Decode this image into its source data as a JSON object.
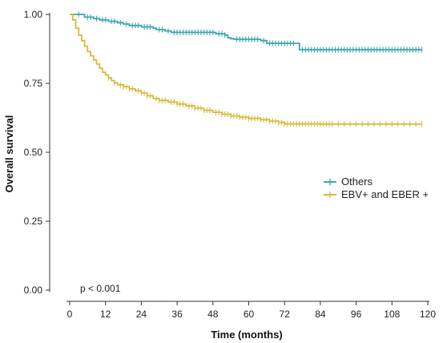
{
  "chart_data": {
    "type": "line",
    "step": true,
    "xlabel": "Time (months)",
    "ylabel": "Overall survival",
    "xlim": [
      0,
      120
    ],
    "ylim": [
      0,
      1
    ],
    "xticks": [
      0,
      12,
      24,
      36,
      48,
      60,
      72,
      84,
      96,
      108,
      120
    ],
    "yticks": [
      {
        "value": 0.0,
        "label": "0.00"
      },
      {
        "value": 0.25,
        "label": "0.25"
      },
      {
        "value": 0.5,
        "label": "0.50"
      },
      {
        "value": 0.75,
        "label": "0.75"
      },
      {
        "value": 1.0,
        "label": "1.00"
      }
    ],
    "grid": false,
    "legend_position": "right-middle",
    "annotation": "p < 0.001",
    "series": [
      {
        "name": "Others",
        "color": "#3aa5ad",
        "points": [
          [
            0,
            1.0
          ],
          [
            4,
            1.0
          ],
          [
            5,
            0.99
          ],
          [
            8,
            0.985
          ],
          [
            10,
            0.98
          ],
          [
            13,
            0.975
          ],
          [
            16,
            0.97
          ],
          [
            18,
            0.965
          ],
          [
            20,
            0.96
          ],
          [
            24,
            0.955
          ],
          [
            28,
            0.95
          ],
          [
            29,
            0.945
          ],
          [
            32,
            0.94
          ],
          [
            34,
            0.935
          ],
          [
            48,
            0.935
          ],
          [
            49,
            0.93
          ],
          [
            52,
            0.925
          ],
          [
            53,
            0.915
          ],
          [
            54,
            0.912
          ],
          [
            55,
            0.91
          ],
          [
            64,
            0.905
          ],
          [
            66,
            0.895
          ],
          [
            76,
            0.895
          ],
          [
            77,
            0.872
          ],
          [
            118,
            0.872
          ]
        ],
        "censor_times": [
          3,
          6,
          7,
          9,
          11,
          12,
          14,
          15,
          17,
          19,
          21,
          22,
          23,
          25,
          26,
          27,
          30,
          31,
          33,
          35,
          36,
          37,
          38,
          39,
          40,
          41,
          42,
          43,
          44,
          45,
          46,
          47,
          48,
          50,
          51,
          52,
          56,
          57,
          58,
          59,
          60,
          61,
          62,
          63,
          65,
          67,
          68,
          69,
          70,
          71,
          72,
          73,
          74,
          75,
          78,
          79,
          80,
          81,
          82,
          83,
          84,
          85,
          86,
          87,
          88,
          89,
          90,
          91,
          92,
          93,
          94,
          95,
          96,
          97,
          98,
          99,
          100,
          101,
          102,
          103,
          104,
          105,
          106,
          107,
          108,
          109,
          110,
          111,
          112,
          113,
          114,
          115,
          116,
          117,
          118
        ]
      },
      {
        "name": "EBV+ and EBER +",
        "color": "#d9b93c",
        "points": [
          [
            0,
            1.0
          ],
          [
            1,
            0.98
          ],
          [
            2,
            0.95
          ],
          [
            3,
            0.925
          ],
          [
            4,
            0.905
          ],
          [
            5,
            0.885
          ],
          [
            6,
            0.865
          ],
          [
            7,
            0.85
          ],
          [
            8,
            0.835
          ],
          [
            9,
            0.82
          ],
          [
            10,
            0.805
          ],
          [
            11,
            0.79
          ],
          [
            12,
            0.78
          ],
          [
            13,
            0.77
          ],
          [
            14,
            0.76
          ],
          [
            15,
            0.752
          ],
          [
            16,
            0.745
          ],
          [
            18,
            0.738
          ],
          [
            20,
            0.73
          ],
          [
            22,
            0.723
          ],
          [
            24,
            0.715
          ],
          [
            26,
            0.705
          ],
          [
            28,
            0.695
          ],
          [
            30,
            0.688
          ],
          [
            33,
            0.682
          ],
          [
            36,
            0.675
          ],
          [
            39,
            0.668
          ],
          [
            42,
            0.66
          ],
          [
            45,
            0.652
          ],
          [
            48,
            0.645
          ],
          [
            51,
            0.638
          ],
          [
            54,
            0.632
          ],
          [
            57,
            0.627
          ],
          [
            60,
            0.623
          ],
          [
            64,
            0.618
          ],
          [
            67,
            0.613
          ],
          [
            70,
            0.608
          ],
          [
            72,
            0.603
          ],
          [
            78,
            0.603
          ],
          [
            84,
            0.602
          ],
          [
            118,
            0.602
          ]
        ],
        "censor_times": [
          13,
          15,
          17,
          18,
          19,
          20,
          21,
          23,
          24,
          25,
          26,
          27,
          29,
          30,
          31,
          32,
          34,
          35,
          36,
          37,
          38,
          40,
          41,
          42,
          43,
          44,
          45,
          46,
          47,
          49,
          50,
          51,
          52,
          53,
          54,
          55,
          56,
          57,
          58,
          59,
          60,
          61,
          62,
          63,
          64,
          65,
          66,
          67,
          68,
          69,
          70,
          71,
          72,
          73,
          74,
          75,
          76,
          77,
          78,
          79,
          80,
          81,
          82,
          83,
          84,
          85,
          86,
          87,
          88,
          90,
          92,
          94,
          96,
          98,
          100,
          102,
          104,
          106,
          108,
          110,
          112,
          114,
          116,
          118
        ]
      }
    ]
  }
}
